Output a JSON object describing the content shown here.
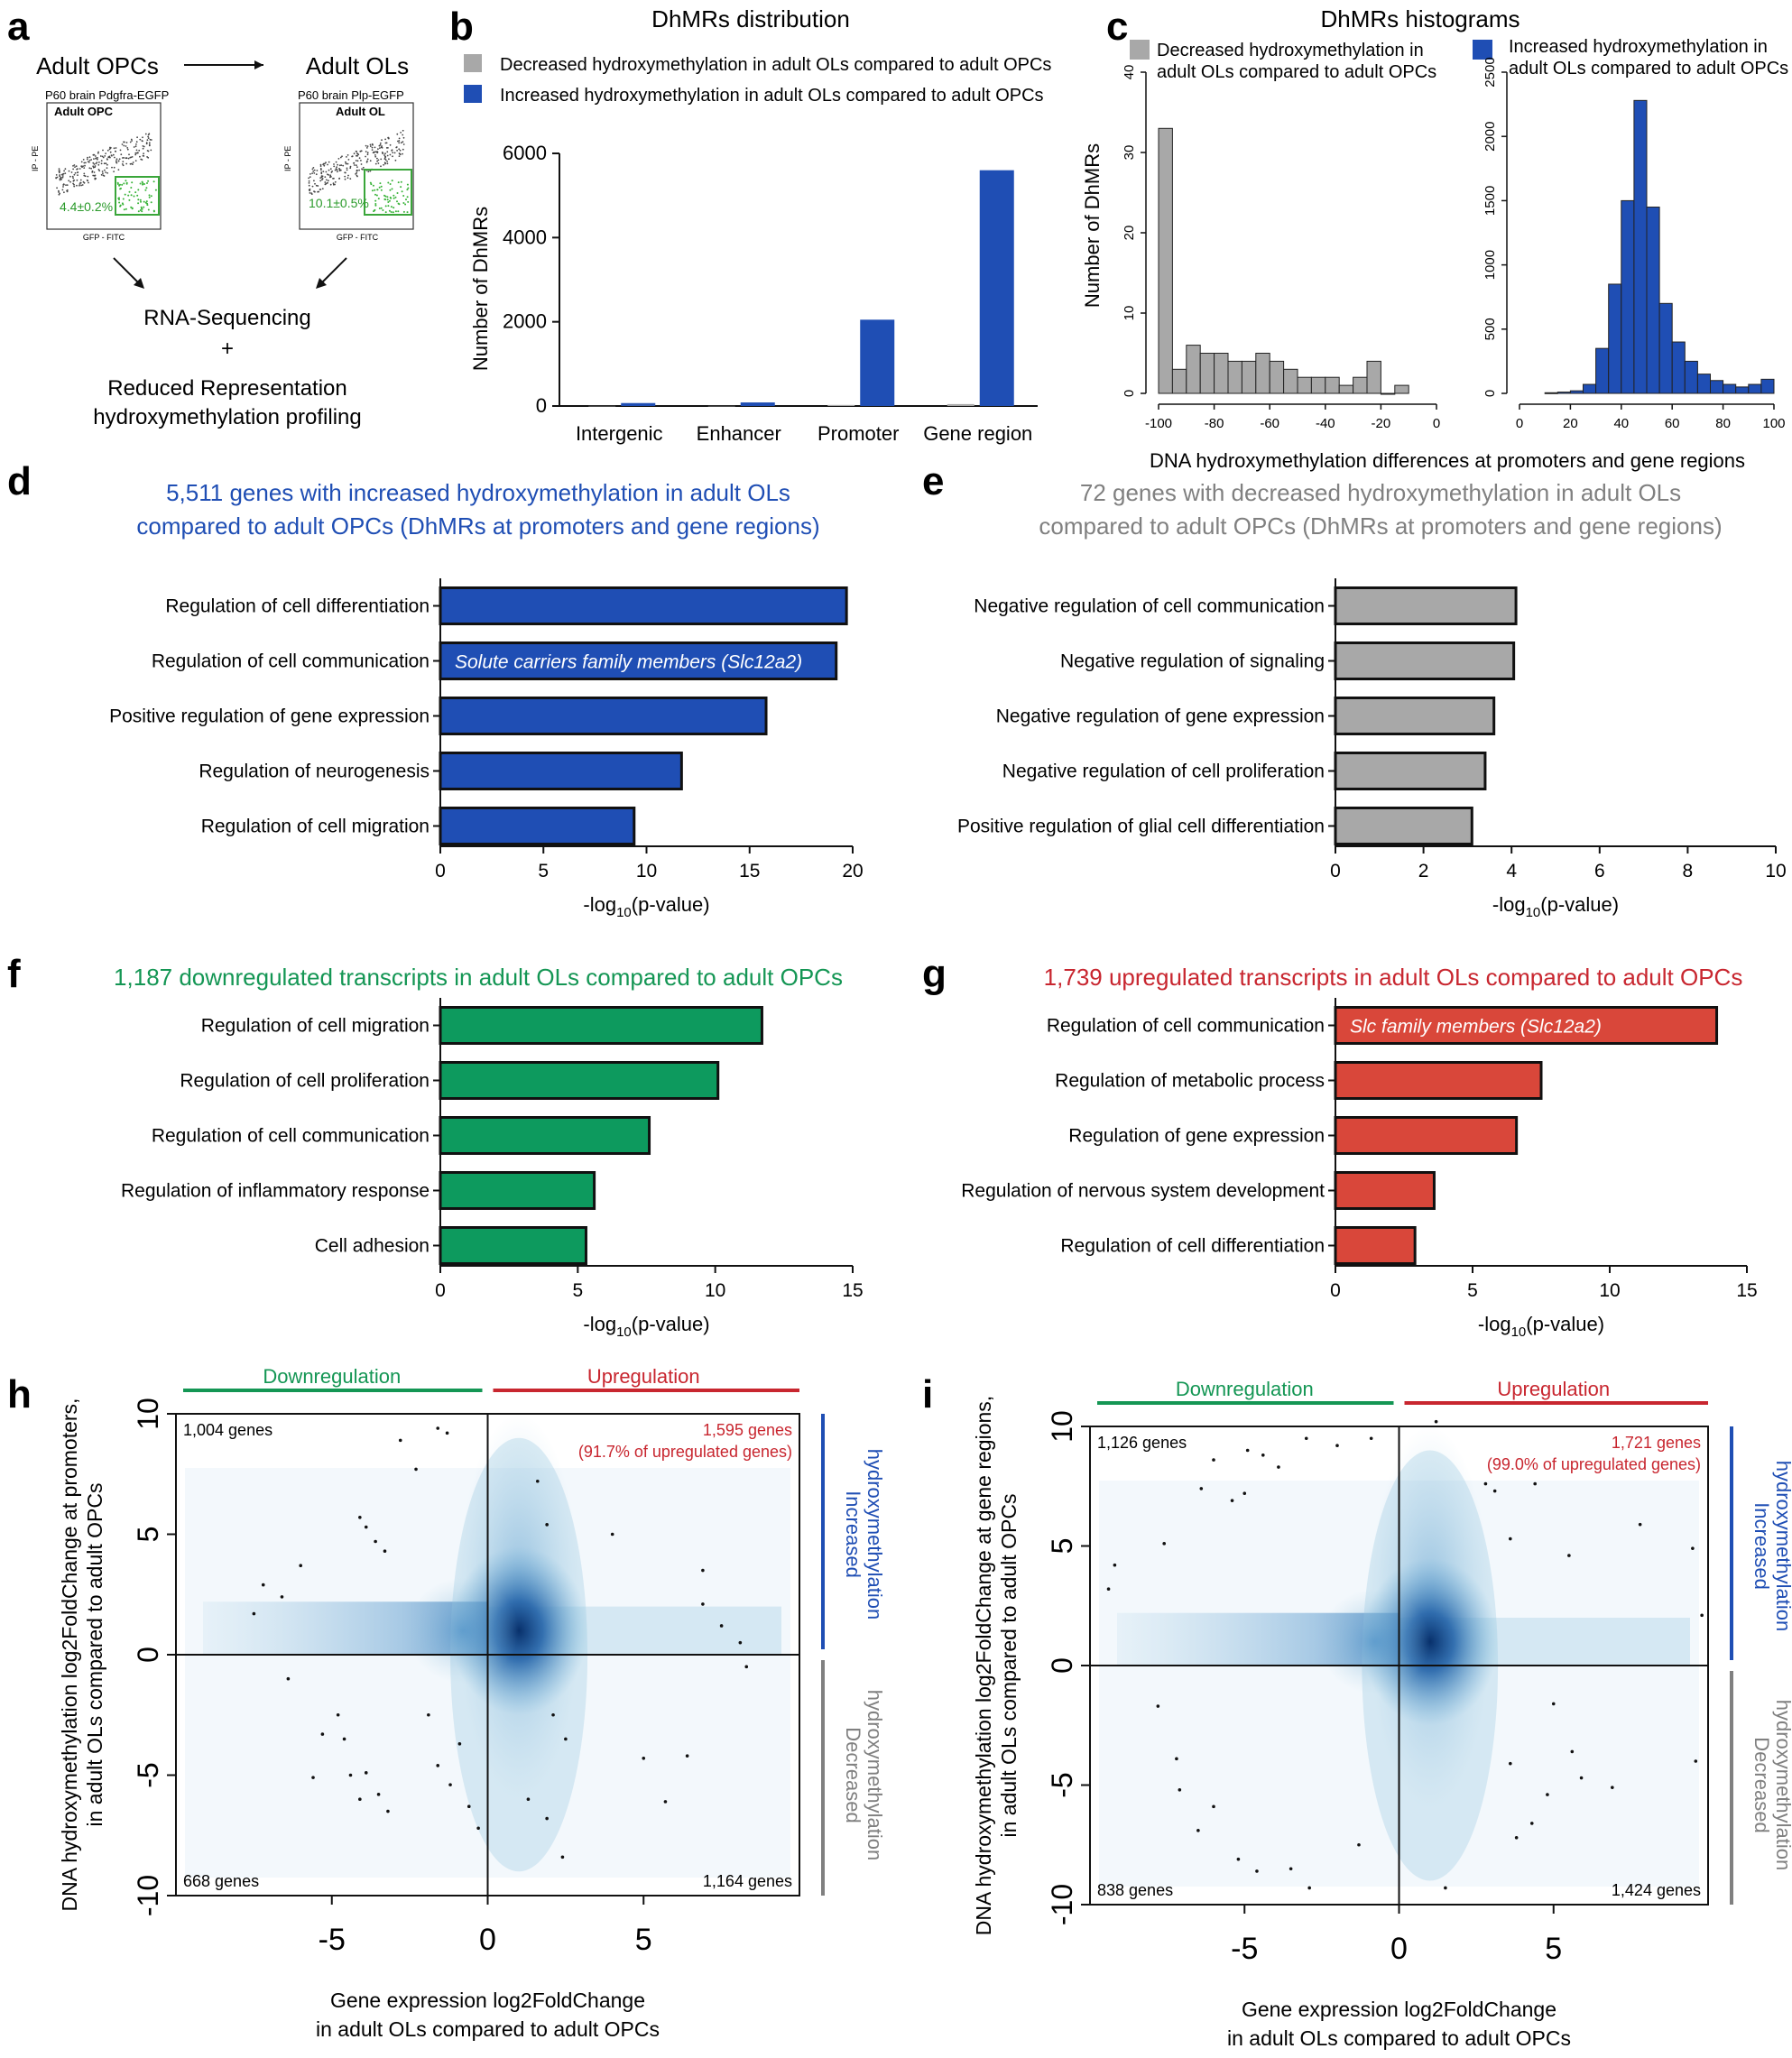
{
  "panel_labels": {
    "a": "a",
    "b": "b",
    "c": "c",
    "d": "d",
    "e": "e",
    "f": "f",
    "g": "g",
    "h": "h",
    "i": "i"
  },
  "colors": {
    "blue": "#1f4eb4",
    "gray": "#a8a8a8",
    "green": "#0d9a5e",
    "red": "#d9473a",
    "header_blue": "#1f4eb4",
    "header_gray": "#808080",
    "header_green": "#149654",
    "header_red": "#c8262f",
    "density": "#1f6eb4"
  },
  "panel_a": {
    "left_title": "Adult OPCs",
    "right_title": "Adult OLs",
    "left_plot_header": "P60 brain Pdgfra-EGFP",
    "left_plot_sub": "Adult OPC",
    "left_gate": "4.4±0.2%",
    "right_plot_header": "P60 brain Plp-EGFP",
    "right_plot_sub": "Adult OL",
    "right_gate": "10.1±0.5%",
    "y_axis": "IP - PE",
    "x_axis": "GFP - FITC",
    "method_line1": "RNA-Sequencing",
    "method_plus": "+",
    "method_line2": "Reduced Representation",
    "method_line3": "hydroxymethylation profiling"
  },
  "chart_data": [
    {
      "id": "b",
      "type": "bar",
      "title": "DhMRs distribution",
      "legend": [
        "Decreased hydroxymethylation in adult OLs compared to adult OPCs",
        "Increased hydroxymethylation in adult OLs compared to adult OPCs"
      ],
      "categories": [
        "Intergenic",
        "Enhancer",
        "Promoter",
        "Gene region"
      ],
      "series": [
        {
          "name": "Decreased",
          "values": [
            3,
            3,
            25,
            45
          ]
        },
        {
          "name": "Increased",
          "values": [
            70,
            85,
            2050,
            5600
          ]
        }
      ],
      "ylabel": "Number of DhMRs",
      "ylim": [
        0,
        6000
      ],
      "yticks": [
        "0",
        "2000",
        "4000",
        "6000"
      ]
    },
    {
      "id": "c",
      "type": "histogram",
      "title": "DhMRs histograms",
      "xlabel": "DNA hydroxymethylation differences at promoters and gene regions",
      "ylabel": "Number of DhMRs",
      "left": {
        "legend": [
          "Decreased hydroxymethylation in",
          "adult OLs compared to adult OPCs"
        ],
        "bin_start": -100,
        "bin_width": 5,
        "counts": [
          33,
          3,
          6,
          5,
          5,
          4,
          4,
          5,
          4,
          3,
          2,
          2,
          2,
          1,
          2,
          4,
          0,
          1
        ],
        "ylim": [
          0,
          40
        ],
        "yticks": [
          "0",
          "10",
          "20",
          "30",
          "40"
        ],
        "xticks": [
          "-100",
          "-80",
          "-60",
          "-40",
          "-20",
          "0"
        ]
      },
      "right": {
        "legend": [
          "Increased hydroxymethylation in",
          "adult OLs compared to adult OPCs"
        ],
        "bin_start": 10,
        "bin_width": 5,
        "counts": [
          5,
          10,
          20,
          70,
          350,
          850,
          1500,
          2280,
          1450,
          700,
          400,
          250,
          150,
          100,
          70,
          50,
          70,
          110
        ],
        "ylim": [
          0,
          2500
        ],
        "yticks": [
          "0",
          "500",
          "1000",
          "1500",
          "2000",
          "2500"
        ],
        "xticks": [
          "0",
          "20",
          "40",
          "60",
          "80",
          "100"
        ]
      }
    },
    {
      "id": "d",
      "type": "hbar",
      "title_line1": "5,511 genes with increased hydroxymethylation in adult OLs",
      "title_line2": "compared to adult OPCs (DhMRs at promoters and gene regions)",
      "categories": [
        "Regulation of cell differentiation",
        "Regulation of cell communication",
        "Positive regulation of gene expression",
        "Regulation of neurogenesis",
        "Regulation of cell migration"
      ],
      "values": [
        19.7,
        19.2,
        15.8,
        11.7,
        9.4
      ],
      "annotations": [
        "",
        "Solute carriers family members (Slc12a2)",
        "",
        "",
        ""
      ],
      "xlim": [
        0,
        20
      ],
      "xticks": [
        "0",
        "5",
        "10",
        "15",
        "20"
      ],
      "xlabel": "-log",
      "xlabel_sub": "10",
      "xlabel_end": "(p-value)"
    },
    {
      "id": "e",
      "type": "hbar",
      "title_line1": "72 genes with decreased hydroxymethylation in adult OLs",
      "title_line2": "compared to adult OPCs (DhMRs at promoters and gene regions)",
      "categories": [
        "Negative regulation of cell communication",
        "Negative regulation of signaling",
        "Negative regulation of gene expression",
        "Negative regulation of cell proliferation",
        "Positive regulation of glial cell differentiation"
      ],
      "values": [
        4.1,
        4.05,
        3.6,
        3.4,
        3.1
      ],
      "annotations": [
        "",
        "",
        "",
        "",
        ""
      ],
      "xlim": [
        0,
        10
      ],
      "xticks": [
        "0",
        "2",
        "4",
        "6",
        "8",
        "10"
      ],
      "xlabel": "-log",
      "xlabel_sub": "10",
      "xlabel_end": "(p-value)"
    },
    {
      "id": "f",
      "type": "hbar",
      "title_line1": "1,187 downregulated transcripts in adult OLs compared to adult OPCs",
      "title_line2": "",
      "categories": [
        "Regulation of cell migration",
        "Regulation of cell proliferation",
        "Regulation of cell communication",
        "Regulation of inflammatory response",
        "Cell adhesion"
      ],
      "values": [
        11.7,
        10.1,
        7.6,
        5.6,
        5.3
      ],
      "annotations": [
        "",
        "",
        "",
        "",
        ""
      ],
      "xlim": [
        0,
        15
      ],
      "xticks": [
        "0",
        "5",
        "10",
        "15"
      ],
      "xlabel": "-log",
      "xlabel_sub": "10",
      "xlabel_end": "(p-value)"
    },
    {
      "id": "g",
      "type": "hbar",
      "title_line1": "1,739 upregulated transcripts in adult OLs compared to adult OPCs",
      "title_line2": "",
      "categories": [
        "Regulation of cell communication",
        "Regulation of metabolic process",
        "Regulation of gene expression",
        "Regulation of nervous system development",
        "Regulation of cell differentiation"
      ],
      "values": [
        13.9,
        7.5,
        6.6,
        3.6,
        2.9
      ],
      "annotations": [
        "Slc family members (Slc12a2)",
        "",
        "",
        "",
        ""
      ],
      "xlim": [
        0,
        15
      ],
      "xticks": [
        "0",
        "5",
        "10",
        "15"
      ],
      "xlabel": "-log",
      "xlabel_sub": "10",
      "xlabel_end": "(p-value)"
    },
    {
      "id": "h",
      "type": "density-scatter",
      "ylabel_line1": "DNA hydroxymethylation log2FoldChange at promoters,",
      "ylabel_line2": "in adult OLs compared to adult OPCs",
      "xlabel_line1": "Gene expression log2FoldChange",
      "xlabel_line2": "in adult OLs compared to adult OPCs",
      "xlim": [
        -10,
        10
      ],
      "ylim": [
        -10,
        10
      ],
      "xticks": [
        "-5",
        "0",
        "5"
      ],
      "yticks": [
        "-10",
        "-5",
        "0",
        "5",
        "10"
      ],
      "down_label": "Downregulation",
      "up_label": "Upregulation",
      "inc_label": [
        "Increased",
        "hydroxymethylation"
      ],
      "dec_label": [
        "Decreased",
        "hydroxymethylation"
      ],
      "q_topleft": "1,004 genes",
      "q_topright": "1,595 genes",
      "q_topright_sub": "(91.7% of upregulated genes)",
      "q_bottomleft": "668 genes",
      "q_bottomright": "1,164 genes",
      "outliers": [
        [
          -7.5,
          1.7
        ],
        [
          -7.2,
          2.9
        ],
        [
          -6.6,
          2.4
        ],
        [
          -6.0,
          3.7
        ],
        [
          -6.4,
          -1.0
        ],
        [
          -5.6,
          -5.1
        ],
        [
          -5.3,
          -3.3
        ],
        [
          -4.8,
          -2.5
        ],
        [
          -4.6,
          -3.5
        ],
        [
          -4.4,
          -5.0
        ],
        [
          -4.1,
          -6.0
        ],
        [
          -3.9,
          -4.9
        ],
        [
          -3.5,
          -5.8
        ],
        [
          -3.2,
          -6.5
        ],
        [
          -3.6,
          4.7
        ],
        [
          -3.9,
          5.3
        ],
        [
          -3.3,
          4.3
        ],
        [
          -4.1,
          5.7
        ],
        [
          -2.8,
          8.9
        ],
        [
          -2.3,
          7.7
        ],
        [
          -1.6,
          9.4
        ],
        [
          -1.3,
          9.2
        ],
        [
          -1.9,
          -2.5
        ],
        [
          -1.6,
          -4.6
        ],
        [
          -1.2,
          -5.4
        ],
        [
          -0.9,
          -3.7
        ],
        [
          -0.6,
          -6.3
        ],
        [
          -0.3,
          -7.2
        ],
        [
          1.6,
          7.2
        ],
        [
          1.9,
          5.4
        ],
        [
          2.1,
          -2.5
        ],
        [
          2.5,
          -3.5
        ],
        [
          1.3,
          -6.0
        ],
        [
          1.9,
          -6.8
        ],
        [
          2.4,
          -8.4
        ],
        [
          4.0,
          5.0
        ],
        [
          5.0,
          -4.3
        ],
        [
          6.9,
          3.5
        ],
        [
          6.9,
          2.1
        ],
        [
          7.5,
          1.2
        ],
        [
          8.1,
          0.5
        ],
        [
          8.3,
          -0.5
        ],
        [
          6.4,
          -4.2
        ],
        [
          5.7,
          -6.1
        ]
      ]
    },
    {
      "id": "i",
      "type": "density-scatter",
      "ylabel_line1": "DNA hydroxymethylation log2FoldChange at gene regions,",
      "ylabel_line2": "in adult OLs compared to adult OPCs",
      "xlabel_line1": "Gene expression log2FoldChange",
      "xlabel_line2": "in adult OLs compared to adult OPCs",
      "xlim": [
        -10,
        10
      ],
      "ylim": [
        -10,
        10
      ],
      "xticks": [
        "-5",
        "0",
        "5"
      ],
      "yticks": [
        "-10",
        "-5",
        "0",
        "5",
        "10"
      ],
      "down_label": "Downregulation",
      "up_label": "Upregulation",
      "inc_label": [
        "Increased",
        "hydroxymethylation"
      ],
      "dec_label": [
        "Decreased",
        "hydroxymethylation"
      ],
      "q_topleft": "1,126 genes",
      "q_topright": "1,721 genes",
      "q_topright_sub": "(99.0% of upregulated genes)",
      "q_bottomleft": "838 genes",
      "q_bottomright": "1,424 genes",
      "outliers": [
        [
          -9.4,
          3.2
        ],
        [
          -9.2,
          4.2
        ],
        [
          -7.6,
          5.1
        ],
        [
          -6.4,
          7.4
        ],
        [
          -6.0,
          8.6
        ],
        [
          -5.4,
          6.9
        ],
        [
          -5.0,
          7.2
        ],
        [
          -4.9,
          9.0
        ],
        [
          -4.4,
          8.8
        ],
        [
          -3.9,
          8.3
        ],
        [
          -3.0,
          9.5
        ],
        [
          -2.0,
          9.2
        ],
        [
          -0.9,
          9.5
        ],
        [
          -7.8,
          -1.7
        ],
        [
          -7.2,
          -3.9
        ],
        [
          -7.1,
          -5.2
        ],
        [
          -6.5,
          -6.9
        ],
        [
          -6.0,
          -5.9
        ],
        [
          -5.2,
          -8.1
        ],
        [
          -4.6,
          -8.6
        ],
        [
          -3.5,
          -8.5
        ],
        [
          -2.9,
          -9.3
        ],
        [
          -1.3,
          -7.5
        ],
        [
          1.2,
          10.2
        ],
        [
          2.8,
          7.6
        ],
        [
          3.1,
          7.3
        ],
        [
          3.6,
          5.3
        ],
        [
          4.4,
          7.6
        ],
        [
          5.5,
          4.6
        ],
        [
          7.8,
          5.9
        ],
        [
          5.0,
          -1.6
        ],
        [
          5.6,
          -3.6
        ],
        [
          5.9,
          -4.7
        ],
        [
          4.8,
          -5.4
        ],
        [
          4.3,
          -6.6
        ],
        [
          3.8,
          -7.2
        ],
        [
          3.6,
          -4.1
        ],
        [
          1.5,
          -9.3
        ],
        [
          6.9,
          -5.1
        ],
        [
          9.6,
          -4.0
        ],
        [
          9.5,
          4.9
        ],
        [
          9.8,
          2.1
        ]
      ]
    }
  ]
}
